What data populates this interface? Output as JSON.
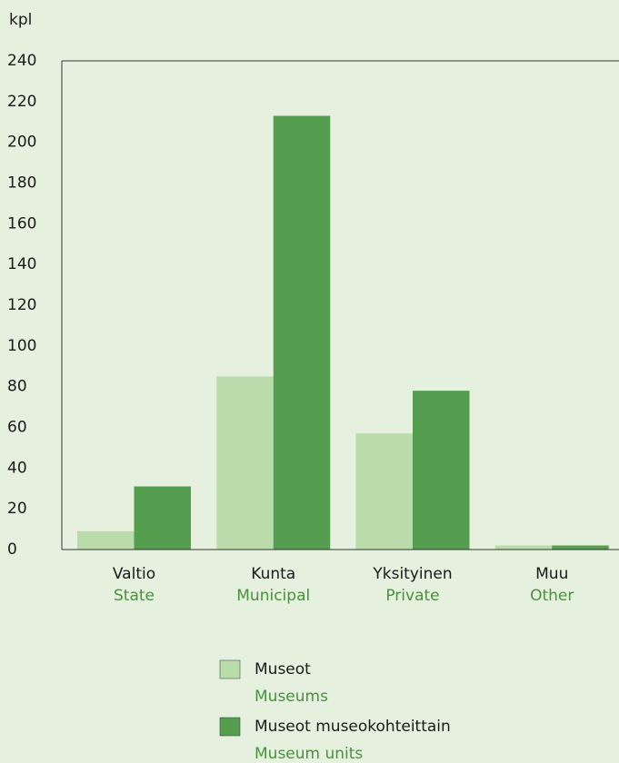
{
  "chart_data": {
    "type": "bar",
    "y_label": "kpl",
    "categories": [
      "Valtio",
      "Kunta",
      "Yksityinen",
      "Muu"
    ],
    "categories_en": [
      "State",
      "Municipal",
      "Private",
      "Other"
    ],
    "series": [
      {
        "name": "Museot",
        "name_en": "Museums",
        "color": "#b9dcaa",
        "values": [
          9,
          85,
          57,
          2
        ]
      },
      {
        "name": "Museot museokohteittain",
        "name_en": "Museum units",
        "color": "#559e4f",
        "values": [
          31,
          213,
          78,
          2
        ]
      }
    ],
    "ylim": [
      0,
      240
    ],
    "yticks": [
      0,
      20,
      40,
      60,
      80,
      100,
      120,
      140,
      160,
      180,
      200,
      220,
      240
    ]
  }
}
